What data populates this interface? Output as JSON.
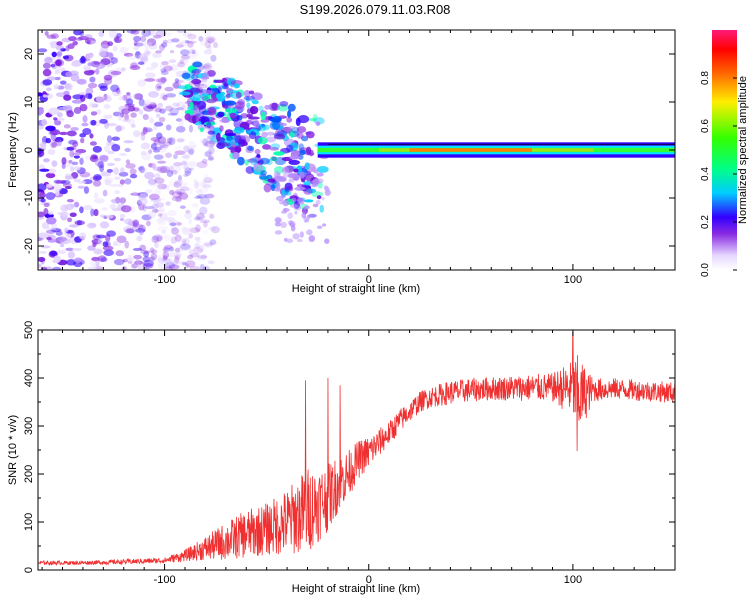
{
  "title": "S199.2026.079.11.03.R08",
  "chart_data": [
    {
      "type": "heatmap",
      "name": "spectrogram",
      "xlabel": "Height of straight line (km)",
      "ylabel": "Frequency (Hz)",
      "xlim": [
        -162,
        150
      ],
      "ylim": [
        -25,
        25
      ],
      "xticks": [
        -100,
        0,
        100
      ],
      "xtick_labels": [
        "-100",
        "0",
        "100"
      ],
      "yticks": [
        -20,
        -10,
        0,
        10,
        20
      ],
      "ytick_labels": [
        "-20",
        "-10",
        "0",
        "10",
        "20"
      ],
      "colorbar": {
        "label": "Normalized spectral amplitude",
        "range": [
          0,
          1
        ],
        "ticks": [
          0.0,
          0.2,
          0.4,
          0.6,
          0.8
        ],
        "tick_labels": [
          "0.0",
          "0.2",
          "0.4",
          "0.6",
          "0.8"
        ]
      },
      "description_of_structure": {
        "noise_region_km": [
          -162,
          -85
        ],
        "diagonal_band_km": [
          -90,
          -25
        ],
        "diagonal_band_freq_hz": [
          13,
          -19
        ],
        "carrier_line_freq_hz": 0,
        "carrier_start_km": -25
      }
    },
    {
      "type": "line",
      "name": "snr",
      "xlabel": "Height of straight line (km)",
      "ylabel": "SNR (10 * v/v)",
      "xlim": [
        -162,
        150
      ],
      "ylim": [
        0,
        500
      ],
      "xticks": [
        -100,
        0,
        100
      ],
      "xtick_labels": [
        "-100",
        "0",
        "100"
      ],
      "yticks": [
        0,
        100,
        200,
        300,
        400,
        500
      ],
      "ytick_labels": [
        "0",
        "100",
        "200",
        "300",
        "400",
        "500"
      ],
      "color": "#f03030",
      "trend_x": [
        -162,
        -140,
        -120,
        -100,
        -90,
        -80,
        -70,
        -60,
        -50,
        -40,
        -30,
        -20,
        -15,
        -10,
        -5,
        0,
        5,
        10,
        15,
        20,
        25,
        30,
        40,
        50,
        60,
        80,
        90,
        100,
        102,
        110,
        120,
        130,
        140,
        150
      ],
      "trend_y": [
        15,
        15,
        17,
        20,
        30,
        45,
        60,
        75,
        85,
        100,
        125,
        150,
        180,
        200,
        230,
        245,
        265,
        285,
        310,
        330,
        350,
        360,
        370,
        375,
        378,
        380,
        380,
        378,
        360,
        375,
        378,
        375,
        372,
        370
      ],
      "noise_amplitude_y": [
        4,
        4,
        5,
        6,
        12,
        25,
        40,
        50,
        55,
        70,
        90,
        70,
        60,
        50,
        40,
        35,
        30,
        25,
        25,
        22,
        22,
        22,
        25,
        25,
        25,
        28,
        30,
        60,
        90,
        25,
        22,
        22,
        22,
        22
      ],
      "spikes": [
        {
          "x": -31,
          "y": 395
        },
        {
          "x": -20,
          "y": 400
        },
        {
          "x": -14,
          "y": 385
        },
        {
          "x": 100,
          "y": 495
        },
        {
          "x": 102,
          "y": 248
        }
      ]
    }
  ]
}
